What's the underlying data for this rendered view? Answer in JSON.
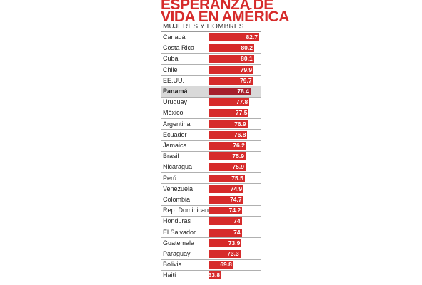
{
  "title_line1": "ESPERANZA DE",
  "title_line2": "VIDA EN AMÉRICA",
  "subtitle": "MUJERES Y HOMBRES",
  "colors": {
    "bar": "#d62b2b",
    "highlight_bar": "#a61f2c",
    "highlight_row": "#d9d9d9",
    "title": "#d62b2b"
  },
  "chart_data": {
    "type": "bar",
    "orientation": "horizontal",
    "title": "ESPERANZA DE VIDA EN AMÉRICA",
    "subtitle": "MUJERES Y HOMBRES",
    "categories": [
      "Canadá",
      "Costa Rica",
      "Cuba",
      "Chile",
      "EE.UU.",
      "Panamá",
      "Uruguay",
      "México",
      "Argentina",
      "Ecuador",
      "Jamaica",
      "Brasil",
      "Nicaragua",
      "Perú",
      "Venezuela",
      "Colombia",
      "Rep. Dominicana",
      "Honduras",
      "El Salvador",
      "Guatemala",
      "Paraguay",
      "Bolivia",
      "Haití"
    ],
    "values": [
      82.7,
      80.2,
      80.1,
      79.9,
      79.7,
      78.4,
      77.8,
      77.5,
      76.9,
      76.8,
      76.2,
      75.9,
      75.9,
      75.5,
      74.9,
      74.7,
      74.2,
      74,
      74,
      73.9,
      73.3,
      69.8,
      63.8
    ],
    "value_labels": [
      "82.7",
      "80.2",
      "80.1",
      "79.9",
      "79.7",
      "78.4",
      "77.8",
      "77.5",
      "76.9",
      "76.8",
      "76.2",
      "75.9",
      "75.9",
      "75.5",
      "74.9",
      "74.7",
      "74.2",
      "74",
      "74",
      "73.9",
      "73.3",
      "69.8",
      "63.8"
    ],
    "highlight": "Panamá",
    "xlabel": "",
    "ylabel": ""
  }
}
